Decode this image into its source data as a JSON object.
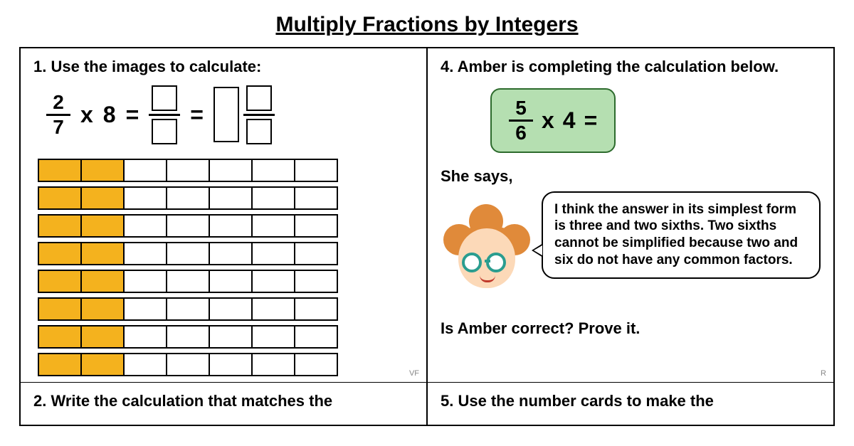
{
  "title": "Multiply Fractions by Integers",
  "q1": {
    "prompt": "1. Use the images to calculate:",
    "numerator": "2",
    "denominator": "7",
    "times": "x",
    "integer": "8",
    "equals": "=",
    "tag": "VF",
    "barmodel": {
      "rows": 8,
      "cols": 7,
      "filled_cols": 2,
      "fill_color": "#f4b21e"
    }
  },
  "q2": {
    "prompt": "2. Write the calculation that matches the"
  },
  "q4": {
    "prompt": "4. Amber is completing the calculation below.",
    "numerator": "5",
    "denominator": "6",
    "times": "x",
    "integer": "4",
    "equals": "=",
    "she_says": "She says,",
    "bubble": "I think the answer in its simplest form is three and two sixths. Two sixths cannot be simplified because two and six do not have any common factors.",
    "closing": "Is Amber correct? Prove it.",
    "tag": "R",
    "pill_bg": "#b5dfb1",
    "pill_border": "#2d6b2d"
  },
  "q5": {
    "prompt": "5. Use the number cards to make the"
  },
  "colors": {
    "text": "#000000",
    "background": "#ffffff",
    "hair": "#e08a3a",
    "skin": "#fcd9b8",
    "glasses": "#2a9d8f"
  }
}
